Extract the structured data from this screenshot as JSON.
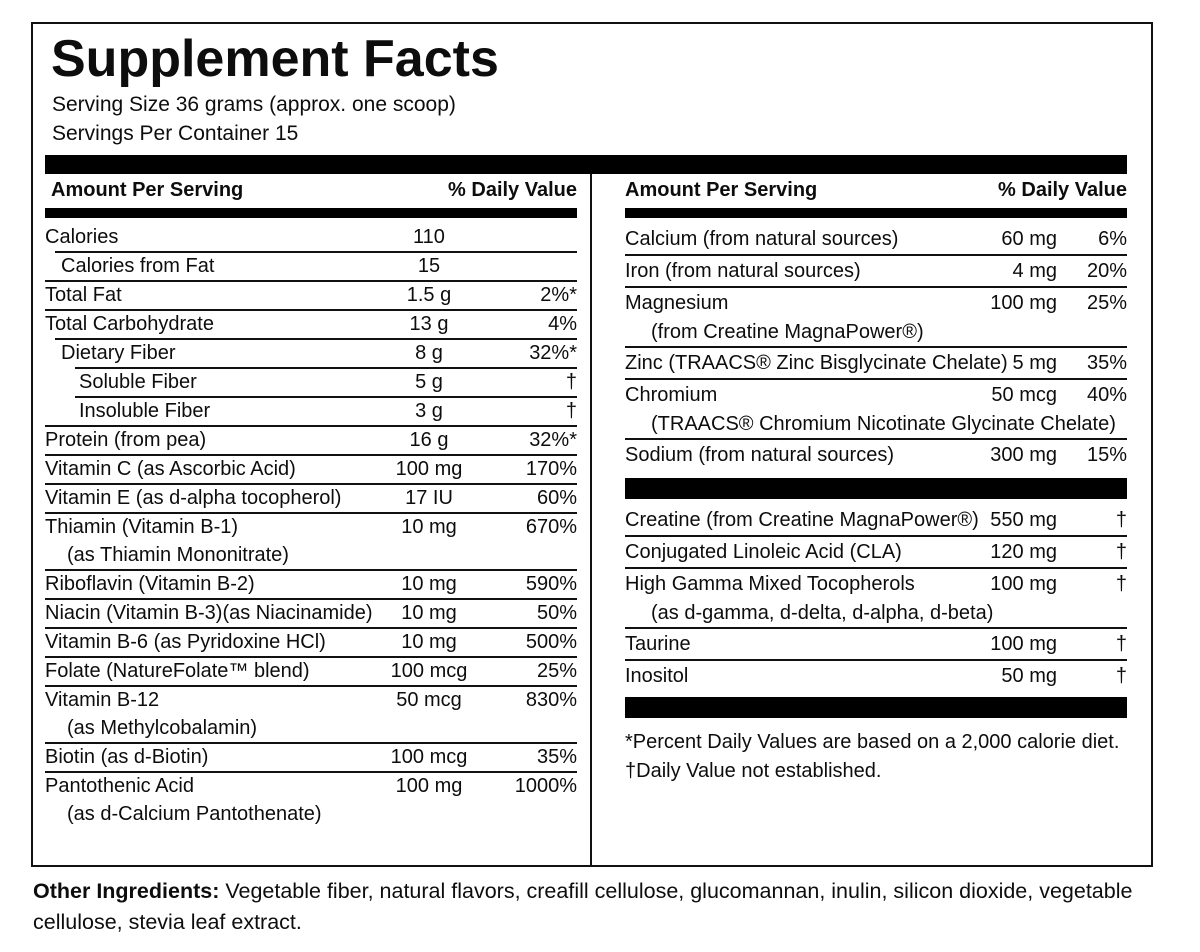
{
  "title": "Supplement Facts",
  "serving_size": "Serving Size 36 grams (approx. one scoop)",
  "servings_per_container": "Servings Per Container 15",
  "columns": {
    "amount_header": "Amount Per Serving",
    "dv_header": "% Daily Value"
  },
  "left_rows": [
    {
      "name": "Calories",
      "amount": "110",
      "dv": "",
      "indent": 0
    },
    {
      "name": "Calories from Fat",
      "amount": "15",
      "dv": "",
      "indent": 1
    },
    {
      "name": "Total Fat",
      "amount": "1.5 g",
      "dv": "2%*",
      "indent": 0
    },
    {
      "name": "Total Carbohydrate",
      "amount": "13 g",
      "dv": "4%",
      "indent": 0
    },
    {
      "name": "Dietary Fiber",
      "amount": "8 g",
      "dv": "32%*",
      "indent": 1
    },
    {
      "name": "Soluble Fiber",
      "amount": "5 g",
      "dv": "†",
      "indent": 2
    },
    {
      "name": "Insoluble Fiber",
      "amount": "3 g",
      "dv": "†",
      "indent": 2
    },
    {
      "name": "Protein (from pea)",
      "amount": "16 g",
      "dv": "32%*",
      "indent": 0
    },
    {
      "name": "Vitamin C (as Ascorbic Acid)",
      "amount": "100 mg",
      "dv": "170%",
      "indent": 0
    },
    {
      "name": "Vitamin E (as d-alpha tocopherol)",
      "amount": "17 IU",
      "dv": "60%",
      "indent": 0
    },
    {
      "name": "Thiamin (Vitamin B-1)",
      "sub": "(as Thiamin Mononitrate)",
      "amount": "10 mg",
      "dv": "670%",
      "indent": 0
    },
    {
      "name": "Riboflavin (Vitamin B-2)",
      "amount": "10 mg",
      "dv": "590%",
      "indent": 0
    },
    {
      "name": "Niacin (Vitamin B-3)(as Niacinamide)",
      "amount": "10 mg",
      "dv": "50%",
      "indent": 0
    },
    {
      "name": "Vitamin B-6 (as Pyridoxine HCl)",
      "amount": "10 mg",
      "dv": "500%",
      "indent": 0
    },
    {
      "name": "Folate (NatureFolate™ blend)",
      "amount": "100 mcg",
      "dv": "25%",
      "indent": 0
    },
    {
      "name": "Vitamin B-12",
      "sub": "(as Methylcobalamin)",
      "amount": "50 mcg",
      "dv": "830%",
      "indent": 0
    },
    {
      "name": "Biotin (as d-Biotin)",
      "amount": "100 mcg",
      "dv": "35%",
      "indent": 0
    },
    {
      "name": "Pantothenic Acid",
      "sub": "(as d-Calcium Pantothenate)",
      "amount": "100 mg",
      "dv": "1000%",
      "indent": 0
    }
  ],
  "right_rows_top": [
    {
      "name": "Calcium (from natural sources)",
      "amount": "60 mg",
      "dv": "6%",
      "indent": 0
    },
    {
      "name": "Iron (from natural sources)",
      "amount": "4 mg",
      "dv": "20%",
      "indent": 0
    },
    {
      "name": "Magnesium",
      "sub": "(from Creatine MagnaPower®)",
      "amount": "100 mg",
      "dv": "25%",
      "indent": 0
    },
    {
      "name": "Zinc (TRAACS® Zinc Bisglycinate Chelate)",
      "amount": "5 mg",
      "dv": "35%",
      "indent": 0
    },
    {
      "name": "Chromium",
      "sub": "(TRAACS® Chromium Nicotinate Glycinate Chelate)",
      "amount": "50 mcg",
      "dv": "40%",
      "indent": 0
    },
    {
      "name": "Sodium (from natural sources)",
      "amount": "300 mg",
      "dv": "15%",
      "indent": 0
    }
  ],
  "right_rows_bottom": [
    {
      "name": "Creatine (from Creatine MagnaPower®)",
      "amount": "550 mg",
      "dv": "†",
      "indent": 0
    },
    {
      "name": "Conjugated Linoleic Acid (CLA)",
      "amount": "120 mg",
      "dv": "†",
      "indent": 0
    },
    {
      "name": "High Gamma Mixed Tocopherols",
      "sub": "(as d-gamma, d-delta, d-alpha, d-beta)",
      "amount": "100 mg",
      "dv": "†",
      "indent": 0
    },
    {
      "name": "Taurine",
      "amount": "100 mg",
      "dv": "†",
      "indent": 0
    },
    {
      "name": "Inositol",
      "amount": "50 mg",
      "dv": "†",
      "indent": 0
    }
  ],
  "footnotes": [
    "*Percent Daily Values are based on a 2,000 calorie diet.",
    "†Daily Value not established."
  ],
  "other_ingredients": {
    "label": "Other Ingredients: ",
    "text": "Vegetable fiber, natural flavors, creafill cellulose, glucomannan, inulin, silicon dioxide, vegetable cellulose, stevia leaf extract."
  }
}
